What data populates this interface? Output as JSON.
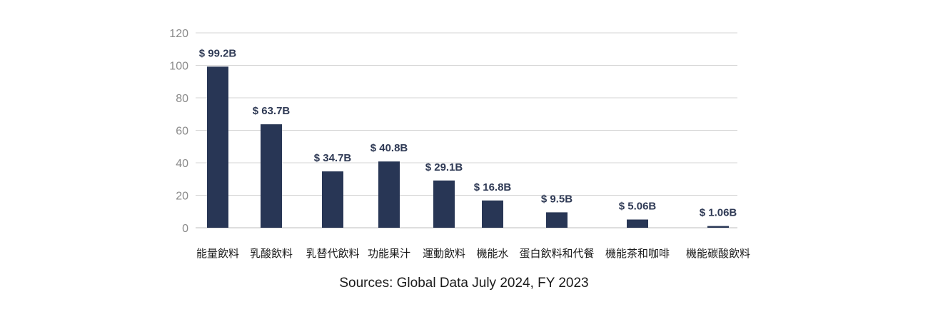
{
  "chart_data": {
    "type": "bar",
    "categories": [
      "能量飲料",
      "乳酸飲料",
      "乳替代飲料",
      "功能果汁",
      "運動飲料",
      "機能水",
      "蛋白飲料和代餐",
      "機能茶和咖啡",
      "機能碳酸飲料"
    ],
    "values": [
      99.2,
      63.7,
      34.7,
      40.8,
      29.1,
      16.8,
      9.5,
      5.06,
      1.06
    ],
    "data_labels": [
      "$ 99.2B",
      "$ 63.7B",
      "$ 34.7B",
      "$ 40.8B",
      "$ 29.1B",
      "$ 16.8B",
      "$ 9.5B",
      "$ 5.06B",
      "$ 1.06B"
    ],
    "y_ticks": [
      0,
      20,
      40,
      60,
      80,
      100,
      120
    ],
    "ylim": [
      0,
      120
    ],
    "grid": true,
    "colors": {
      "bar": "#283655",
      "grid": "#d4d4d4",
      "tick": "#8a8a8a",
      "label": "#2f3a55"
    }
  },
  "footer": {
    "source": "Sources: Global Data July 2024, FY 2023"
  }
}
